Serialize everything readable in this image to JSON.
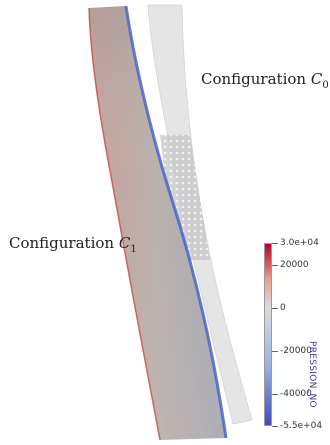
{
  "labels": {
    "config0": {
      "text": "Configuration ",
      "symbol": "C",
      "subscript": "0"
    },
    "config1": {
      "text": "Configuration ",
      "symbol": "C",
      "subscript": "1"
    }
  },
  "colorbar": {
    "title": "PRESSION_NO",
    "min": -55000,
    "max": 30000,
    "ticks": [
      {
        "value": 30000,
        "label": "3.0e+04"
      },
      {
        "value": 20000,
        "label": "20000"
      },
      {
        "value": 0,
        "label": "0"
      },
      {
        "value": -20000,
        "label": "-20000"
      },
      {
        "value": -40000,
        "label": "-40000"
      },
      {
        "value": -55000,
        "label": "-5.5e+04"
      }
    ],
    "colors": {
      "high": "#b40426",
      "mid": "#dddcdc",
      "low": "#3b4cc0"
    }
  }
}
